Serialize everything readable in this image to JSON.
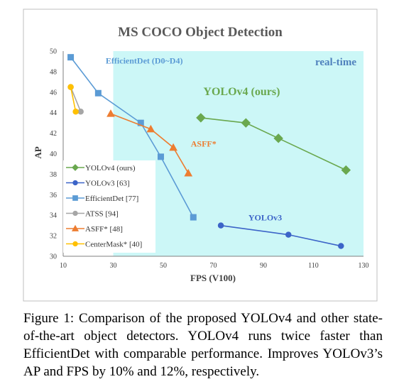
{
  "caption": "Figure 1: Comparison of the proposed YOLOv4 and other state-of-the-art object detectors. YOLOv4 runs twice faster than EfficientDet with comparable performance. Improves YOLOv3’s AP and FPS by 10% and 12%, respectively.",
  "chart_data": {
    "type": "line",
    "title": "MS COCO Object Detection",
    "xlabel": "FPS (V100)",
    "ylabel": "AP",
    "xlim": [
      10,
      130
    ],
    "ylim": [
      30,
      50
    ],
    "x_ticks": [
      "10",
      "30",
      "50",
      "70",
      "90",
      "110",
      "130"
    ],
    "y_ticks": [
      "30",
      "32",
      "34",
      "36",
      "38",
      "40",
      "42",
      "44",
      "46",
      "48",
      "50"
    ],
    "grid": false,
    "legend_position": "bottom-left",
    "realtime_region": {
      "label": "real-time",
      "x_from": 30,
      "color": "#ccf7f7"
    },
    "series": [
      {
        "name": "YOLOv4 (ours)",
        "color": "#6aa84f",
        "marker": "diamond",
        "x": [
          65,
          83,
          96,
          123
        ],
        "y": [
          43.5,
          43.0,
          41.5,
          38.4
        ],
        "annotation": "YOLOv4 (ours)",
        "annotation_anchor": [
          66,
          45.7
        ]
      },
      {
        "name": "YOLOv3 [63]",
        "color": "#3c64c8",
        "marker": "circle",
        "x": [
          73,
          100,
          121
        ],
        "y": [
          33.0,
          32.1,
          31.0
        ],
        "annotation": "YOLOv3",
        "annotation_anchor": [
          84,
          33.5
        ]
      },
      {
        "name": "EfficientDet [77]",
        "color": "#5b9bd5",
        "marker": "square",
        "x": [
          13,
          24,
          41,
          49,
          62
        ],
        "y": [
          49.4,
          45.9,
          43.0,
          39.7,
          33.8
        ],
        "annotation": "EfficientDet (D0~D4)",
        "annotation_anchor": [
          27,
          48.8
        ]
      },
      {
        "name": "ATSS [94]",
        "color": "#a6a6a6",
        "marker": "circle",
        "x": [
          13,
          17
        ],
        "y": [
          46.5,
          44.1
        ]
      },
      {
        "name": "ASFF* [48]",
        "color": "#ed7d31",
        "marker": "triangle",
        "x": [
          29,
          45,
          54,
          60
        ],
        "y": [
          43.9,
          42.4,
          40.6,
          38.1
        ],
        "annotation": "ASFF*",
        "annotation_anchor": [
          61,
          40.7
        ]
      },
      {
        "name": "CenterMask* [40]",
        "color": "#ffc000",
        "marker": "circle",
        "x": [
          13,
          15
        ],
        "y": [
          46.5,
          44.1
        ]
      }
    ]
  }
}
